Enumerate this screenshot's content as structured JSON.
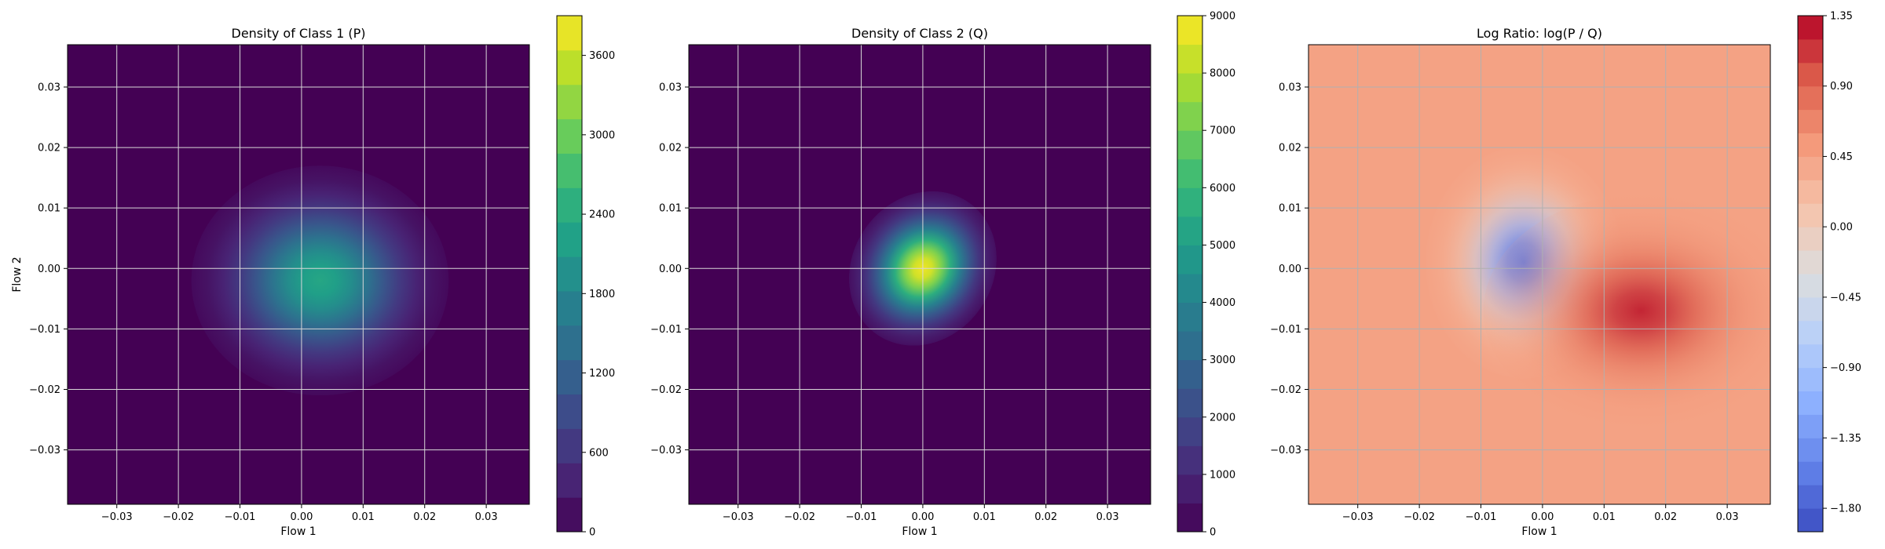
{
  "chart_data": [
    {
      "type": "heatmap",
      "title": "Density of Class 1 (P)",
      "xlabel": "Flow 1",
      "ylabel": "Flow 2",
      "xlim": [
        -0.038,
        0.037
      ],
      "ylim": [
        -0.039,
        0.037
      ],
      "xticks": [
        -0.03,
        -0.02,
        -0.01,
        0.0,
        0.01,
        0.02,
        0.03
      ],
      "yticks": [
        -0.03,
        -0.02,
        -0.01,
        0.0,
        0.01,
        0.02,
        0.03
      ],
      "xtick_labels": [
        "−0.03",
        "−0.02",
        "−0.01",
        "0.00",
        "0.01",
        "0.02",
        "0.03"
      ],
      "ytick_labels": [
        "−0.03",
        "−0.02",
        "−0.01",
        "0.00",
        "0.01",
        "0.02",
        "0.03"
      ],
      "grid": true,
      "colormap": "viridis",
      "color_range": [
        0,
        3900
      ],
      "colorbar_ticks": [
        0,
        600,
        1200,
        1800,
        2400,
        3000,
        3600
      ],
      "colorbar_labels": [
        "0",
        "600",
        "1200",
        "1800",
        "2400",
        "3000",
        "3600"
      ],
      "peak_center": [
        0.003,
        -0.002
      ],
      "peak_value": 2300,
      "spread": [
        0.011,
        0.01
      ]
    },
    {
      "type": "heatmap",
      "title": "Density of Class 2 (Q)",
      "xlabel": "Flow 1",
      "ylabel": "",
      "xlim": [
        -0.038,
        0.037
      ],
      "ylim": [
        -0.039,
        0.037
      ],
      "xticks": [
        -0.03,
        -0.02,
        -0.01,
        0.0,
        0.01,
        0.02,
        0.03
      ],
      "yticks": [
        -0.03,
        -0.02,
        -0.01,
        0.0,
        0.01,
        0.02,
        0.03
      ],
      "xtick_labels": [
        "−0.03",
        "−0.02",
        "−0.01",
        "0.00",
        "0.01",
        "0.02",
        "0.03"
      ],
      "ytick_labels": [
        "−0.03",
        "−0.02",
        "−0.01",
        "0.00",
        "0.01",
        "0.02",
        "0.03"
      ],
      "grid": true,
      "colormap": "viridis",
      "color_range": [
        0,
        9000
      ],
      "colorbar_ticks": [
        0,
        1000,
        2000,
        3000,
        4000,
        5000,
        6000,
        7000,
        8000,
        9000
      ],
      "colorbar_labels": [
        "0",
        "1000",
        "2000",
        "3000",
        "4000",
        "5000",
        "6000",
        "7000",
        "8000",
        "9000"
      ],
      "peak_center": [
        0.0,
        0.0
      ],
      "peak_value": 8800,
      "spread": [
        0.006,
        0.007
      ]
    },
    {
      "type": "heatmap",
      "title": "Log Ratio: log(P / Q)",
      "xlabel": "Flow 1",
      "ylabel": "",
      "xlim": [
        -0.038,
        0.037
      ],
      "ylim": [
        -0.039,
        0.037
      ],
      "xticks": [
        -0.03,
        -0.02,
        -0.01,
        0.0,
        0.01,
        0.02,
        0.03
      ],
      "yticks": [
        -0.03,
        -0.02,
        -0.01,
        0.0,
        0.01,
        0.02,
        0.03
      ],
      "xtick_labels": [
        "−0.03",
        "−0.02",
        "−0.01",
        "0.00",
        "0.01",
        "0.02",
        "0.03"
      ],
      "ytick_labels": [
        "−0.03",
        "−0.02",
        "−0.01",
        "0.00",
        "0.01",
        "0.02",
        "0.03"
      ],
      "grid": true,
      "colormap": "coolwarm",
      "color_range": [
        -1.95,
        1.35
      ],
      "colorbar_ticks": [
        -1.8,
        -1.35,
        -0.9,
        -0.45,
        0.0,
        0.45,
        0.9,
        1.35
      ],
      "colorbar_labels": [
        "−1.80",
        "−1.35",
        "−0.90",
        "−0.45",
        "0.00",
        "0.45",
        "0.90",
        "1.35"
      ],
      "background_value": 0.45,
      "low_center": [
        -0.003,
        0.001
      ],
      "low_value": -1.6,
      "high_center": [
        0.016,
        -0.007
      ],
      "high_value": 1.2
    }
  ]
}
